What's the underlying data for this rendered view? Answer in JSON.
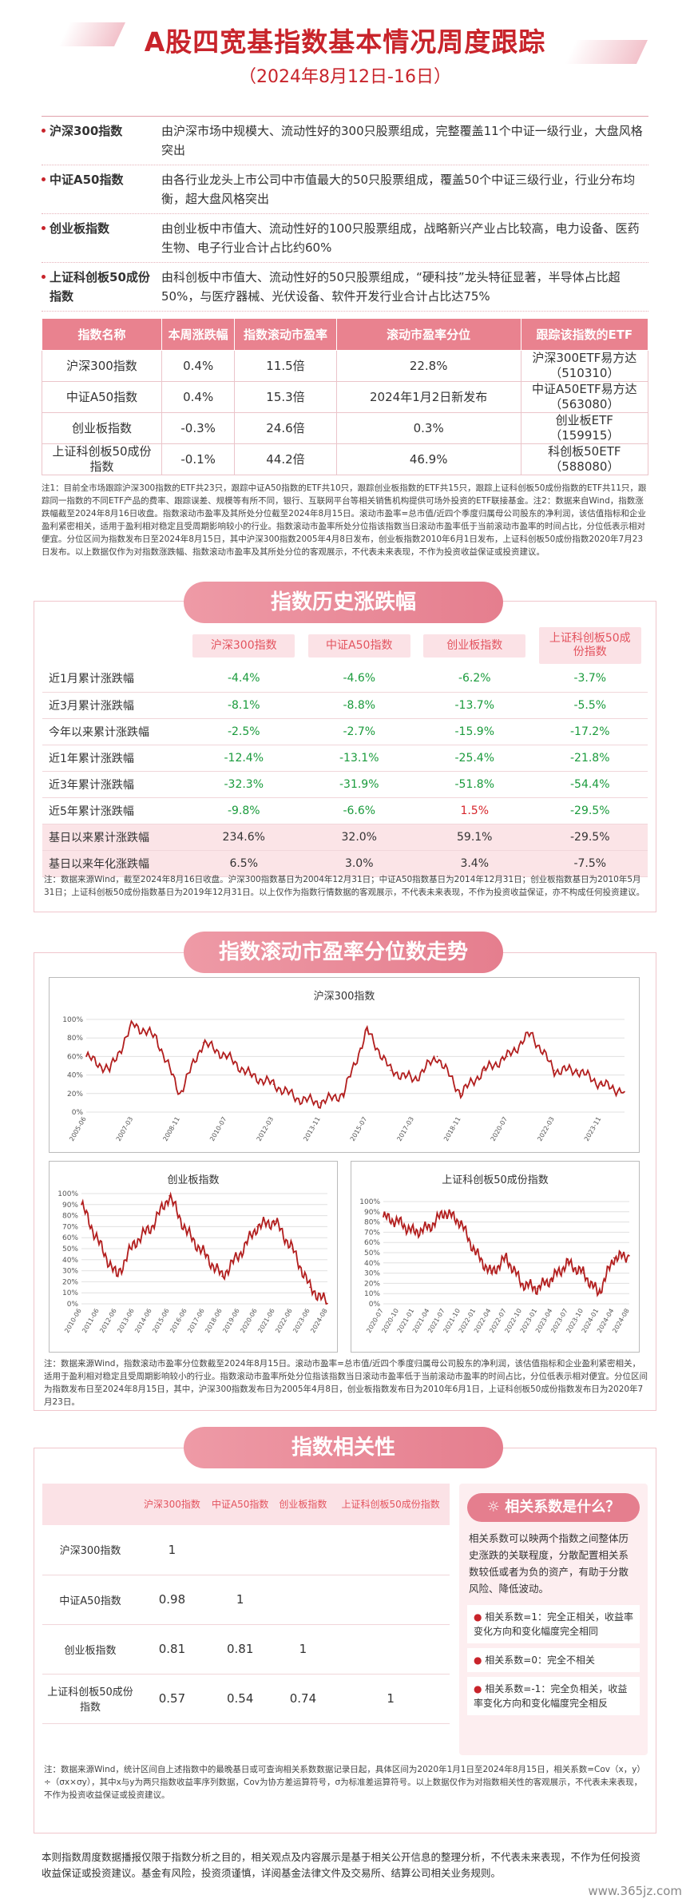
{
  "header": {
    "title": "A股四宽基指数基本情况周度跟踪",
    "subtitle": "（2024年8月12日-16日）"
  },
  "definitions": [
    {
      "name": "沪深300指数",
      "text": "由沪深市场中规模大、流动性好的300只股票组成，完整覆盖11个中证一级行业，大盘风格突出"
    },
    {
      "name": "中证A50指数",
      "text": "由各行业龙头上市公司中市值最大的50只股票组成，覆盖50个中证三级行业，行业分布均衡，超大盘风格突出"
    },
    {
      "name": "创业板指数",
      "text": "由创业板中市值大、流动性好的100只股票组成，战略新兴产业占比较高，电力设备、医药生物、电子行业合计占比约60%"
    },
    {
      "name": "上证科创板50成份指数",
      "text": "由科创板中市值大、流动性好的50只股票组成，“硬科技”龙头特征显著，半导体占比超50%，与医疗器械、光伏设备、软件开发行业合计占比达75%"
    }
  ],
  "table1": {
    "headers": [
      "指数名称",
      "本周涨跌幅",
      "指数滚动市盈率",
      "滚动市盈率分位",
      "跟踪该指数的ETF"
    ],
    "rows": [
      {
        "name": "沪深300指数",
        "chg": "0.4%",
        "pe": "11.5倍",
        "pct": "22.8%",
        "etf": "沪深300ETF易方达",
        "code": "（510310）"
      },
      {
        "name": "中证A50指数",
        "chg": "0.4%",
        "pe": "15.3倍",
        "pct": "2024年1月2日新发布",
        "etf": "中证A50ETF易方达",
        "code": "（563080）"
      },
      {
        "name": "创业板指数",
        "chg": "-0.3%",
        "pe": "24.6倍",
        "pct": "0.3%",
        "etf": "创业板ETF",
        "code": "（159915）"
      },
      {
        "name": "上证科创板50成份指数",
        "chg": "-0.1%",
        "pe": "44.2倍",
        "pct": "46.9%",
        "etf": "科创板50ETF",
        "code": "（588080）"
      }
    ],
    "note": "注1：目前全市场跟踪沪深300指数的ETF共23只，跟踪中证A50指数的ETF共10只，跟踪创业板指数的ETF共15只，跟踪上证科创板50成份指数的ETF共11只，跟踪同一指数的不同ETF产品的费率、跟踪误差、规模等有所不同，银行、互联网平台等相关销售机构提供可场外投资的ETF联接基金。注2：数据来自Wind，指数涨跌幅截至2024年8月16日收盘。指数滚动市盈率及其所处分位截至2024年8月15日。滚动市盈率=总市值/近四个季度归属母公司股东的净利润，该估值指标和企业盈利紧密相关，适用于盈利相对稳定且受周期影响较小的行业。指数滚动市盈率所处分位指该指数当日滚动市盈率低于当前滚动市盈率的时间占比，分位低表示相对便宜。分位区间为指数发布日至2024年8月15日，其中沪深300指数2005年4月8日发布，创业板指数2010年6月1日发布，上证科创板50成份指数2020年7月23日发布。以上数据仅作为对指数涨跌幅、指数滚动市盈率及其所处分位的客观展示，不代表未来表现，不作为投资收益保证或投资建议。"
  },
  "history": {
    "banner": "指数历史涨跌幅",
    "headers": [
      "沪深300指数",
      "中证A50指数",
      "创业板指数",
      "上证科创板50成份指数"
    ],
    "rows": [
      {
        "label": "近1月累计涨跌幅",
        "v": [
          "-4.4%",
          "-4.6%",
          "-6.2%",
          "-3.7%"
        ]
      },
      {
        "label": "近3月累计涨跌幅",
        "v": [
          "-8.1%",
          "-8.8%",
          "-13.7%",
          "-5.5%"
        ]
      },
      {
        "label": "今年以来累计涨跌幅",
        "v": [
          "-2.5%",
          "-2.7%",
          "-15.9%",
          "-17.2%"
        ]
      },
      {
        "label": "近1年累计涨跌幅",
        "v": [
          "-12.4%",
          "-13.1%",
          "-25.4%",
          "-21.8%"
        ]
      },
      {
        "label": "近3年累计涨跌幅",
        "v": [
          "-32.3%",
          "-31.9%",
          "-51.8%",
          "-54.4%"
        ]
      },
      {
        "label": "近5年累计涨跌幅",
        "v": [
          "-9.8%",
          "-6.6%",
          "1.5%",
          "-29.5%"
        ]
      },
      {
        "label": "基日以来累计涨跌幅",
        "v": [
          "234.6%",
          "32.0%",
          "59.1%",
          "-29.5%"
        ]
      },
      {
        "label": "基日以来年化涨跌幅",
        "v": [
          "6.5%",
          "3.0%",
          "3.4%",
          "-7.5%"
        ]
      }
    ],
    "note": "注：数据来源Wind，截至2024年8月16日收盘。沪深300指数基日为2004年12月31日；中证A50指数基日为2014年12月31日；创业板指数基日为2010年5月31日；上证科创板50成份指数基日为2019年12月31日。以上仅作为指数行情数据的客观展示，不代表未来表现，不作为投资收益保证，亦不构成任何投资建议。"
  },
  "pe_trend": {
    "banner": "指数滚动市盈率分位数走势",
    "note": "注：数据来源Wind，指数滚动市盈率分位数截至2024年8月15日。滚动市盈率=总市值/近四个季度归属母公司股东的净利润，该估值指标和企业盈利紧密相关，适用于盈利相对稳定且受周期影响较小的行业。指数滚动市盈率所处分位指该指数当日滚动市盈率低于当前滚动市盈率的时间占比，分位低表示相对便宜。分位区间为指数发布日至2024年8月15日，其中，沪深300指数发布日为2005年4月8日，创业板指数发布日为2010年6月1日，上证科创板50成份指数发布日为2020年7月23日。"
  },
  "chart_data": [
    {
      "type": "line",
      "title": "沪深300指数",
      "ylim": [
        0,
        100
      ],
      "ytick_labels": [
        "0%",
        "20%",
        "40%",
        "60%",
        "80%",
        "100%"
      ],
      "x": [
        "2005-06",
        "2006-04",
        "2007-03",
        "2008-01",
        "2008-11",
        "2009-09",
        "2010-07",
        "2011-05",
        "2012-03",
        "2013-01",
        "2013-11",
        "2014-09",
        "2015-07",
        "2016-05",
        "2017-03",
        "2018-01",
        "2018-11",
        "2019-09",
        "2020-07",
        "2021-05",
        "2022-03",
        "2023-01",
        "2023-11",
        "2024-08"
      ],
      "values": [
        60,
        45,
        95,
        80,
        20,
        75,
        60,
        40,
        30,
        15,
        10,
        20,
        88,
        45,
        35,
        60,
        20,
        45,
        60,
        85,
        45,
        45,
        30,
        22
      ],
      "color": "#b21e1e",
      "grid": true
    },
    {
      "type": "line",
      "title": "创业板指数",
      "ylim": [
        0,
        100
      ],
      "ytick_labels": [
        "0%",
        "10%",
        "20%",
        "30%",
        "40%",
        "50%",
        "60%",
        "70%",
        "80%",
        "90%",
        "100%"
      ],
      "x": [
        "2010-06",
        "2011-06",
        "2012-06",
        "2013-06",
        "2014-06",
        "2015-06",
        "2016-06",
        "2017-06",
        "2018-06",
        "2019-06",
        "2020-06",
        "2021-06",
        "2022-06",
        "2023-06",
        "2024-08"
      ],
      "values": [
        90,
        55,
        25,
        55,
        70,
        98,
        65,
        45,
        25,
        45,
        70,
        75,
        50,
        15,
        0.3
      ],
      "color": "#b21e1e",
      "grid": true
    },
    {
      "type": "line",
      "title": "上证科创板50成份指数",
      "ylim": [
        0,
        100
      ],
      "ytick_labels": [
        "0%",
        "10%",
        "20%",
        "30%",
        "40%",
        "50%",
        "60%",
        "70%",
        "80%",
        "90%",
        "100%"
      ],
      "x": [
        "2020-07",
        "2020-10",
        "2021-01",
        "2021-04",
        "2021-07",
        "2021-10",
        "2022-01",
        "2022-04",
        "2022-07",
        "2022-10",
        "2023-01",
        "2023-04",
        "2023-07",
        "2023-10",
        "2024-01",
        "2024-04",
        "2024-08"
      ],
      "values": [
        85,
        80,
        70,
        75,
        90,
        80,
        50,
        30,
        45,
        20,
        15,
        25,
        40,
        30,
        10,
        45,
        47
      ],
      "color": "#b21e1e",
      "grid": true
    }
  ],
  "correlation": {
    "banner": "指数相关性",
    "headers": [
      "沪深300指数",
      "中证A50指数",
      "创业板指数",
      "上证科创板50成份指数"
    ],
    "rows": [
      {
        "label": "沪深300指数",
        "v": [
          "1",
          "",
          "",
          ""
        ]
      },
      {
        "label": "中证A50指数",
        "v": [
          "0.98",
          "1",
          "",
          ""
        ]
      },
      {
        "label": "创业板指数",
        "v": [
          "0.81",
          "0.81",
          "1",
          ""
        ]
      },
      {
        "label": "上证科创板50成份指数",
        "v": [
          "0.57",
          "0.54",
          "0.74",
          "1"
        ]
      }
    ],
    "qa_title": "相关系数是什么？",
    "qa_text": "相关系数可以映两个指数之间整体历史涨跌的关联程度，分散配置相关系数较低或者为负的资产，有助于分散风险、降低波动。",
    "qa_items": [
      "相关系数=1：完全正相关，收益率变化方向和变化幅度完全相同",
      "相关系数=0：完全不相关",
      "相关系数=-1：完全负相关，收益率变化方向和变化幅度完全相反"
    ],
    "note": "注：数据来源Wind，统计区间自上述指数中的最晚基日或可查询相关系数数据记录日起，具体区间为2020年1月1日至2024年8月15日，相关系数=Cov（x，y）÷（σx×σy），其中x与y为两只指数收益率序列数据，Cov为协方差运算符号，σ为标准差运算符号。以上数据仅作为对指数相关性的客观展示，不代表未来表现，不作为投资收益保证或投资建议。"
  },
  "footer": "本则指数周度数据播报仅限于指数分析之目的，相关观点及内容展示是基于相关公开信息的整理分析，不代表未来表现，不作为任何投资收益保证或投资建议。基金有风险，投资须谨慎，详阅基金法律文件及交易所、结算公司相关业务规则。",
  "watermark": "www.365jz.com"
}
